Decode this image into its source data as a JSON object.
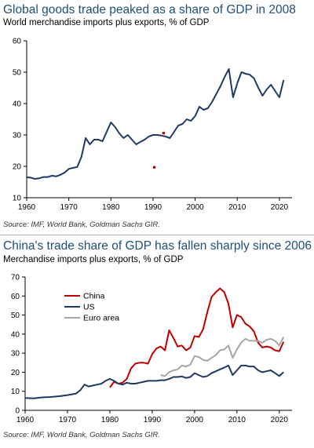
{
  "chart_data": [
    {
      "type": "line",
      "title": "Global goods trade peaked as a share of GDP in 2008",
      "subtitle": "World merchandise imports plus exports, % of GDP",
      "source": "Source: IMF, World Bank, Goldman Sachs GIR.",
      "xlim": [
        1960,
        2023
      ],
      "ylim": [
        10,
        60
      ],
      "xticks": [
        1960,
        1970,
        1980,
        1990,
        2000,
        2010,
        2020
      ],
      "yticks": [
        10,
        20,
        30,
        40,
        50,
        60
      ],
      "grid": false,
      "series": [
        {
          "color": "#1f3864",
          "x": [
            1960,
            1961,
            1962,
            1963,
            1964,
            1965,
            1966,
            1967,
            1968,
            1969,
            1970,
            1971,
            1972,
            1973,
            1974,
            1975,
            1976,
            1977,
            1978,
            1979,
            1980,
            1981,
            1982,
            1983,
            1984,
            1985,
            1986,
            1987,
            1988,
            1989,
            1990,
            1991,
            1992,
            1993,
            1994,
            1995,
            1996,
            1997,
            1998,
            1999,
            2000,
            2001,
            2002,
            2003,
            2004,
            2005,
            2006,
            2007,
            2008,
            2009,
            2010,
            2011,
            2012,
            2013,
            2014,
            2015,
            2016,
            2017,
            2018,
            2019,
            2020,
            2021
          ],
          "values": [
            16.5,
            16.4,
            16.0,
            16.2,
            16.6,
            16.6,
            17.0,
            16.8,
            17.3,
            18.0,
            19.2,
            19.5,
            19.8,
            23.0,
            29.0,
            27.0,
            28.5,
            28.5,
            28.0,
            31.0,
            34.0,
            32.5,
            30.5,
            29.0,
            30.0,
            28.5,
            27.0,
            27.8,
            28.5,
            29.5,
            30.0,
            30.0,
            29.8,
            29.5,
            29.0,
            31.0,
            33.0,
            33.5,
            35.0,
            34.5,
            36.0,
            39.0,
            38.0,
            38.5,
            40.5,
            43.0,
            45.5,
            48.5,
            51.0,
            42.0,
            46.5,
            50.0,
            49.5,
            49.2,
            48.0,
            45.0,
            42.5,
            44.5,
            46.0,
            44.0,
            42.0,
            47.5
          ]
        }
      ],
      "markers": [
        {
          "x": 1992.5,
          "y": 30.6,
          "color": "#c00000"
        },
        {
          "x": 1990.3,
          "y": 19.7,
          "color": "#c00000"
        }
      ]
    },
    {
      "type": "line",
      "title": "China's trade share of GDP has fallen sharply since 2006",
      "subtitle": "Merchandise imports plus exports, % of GDP",
      "source": "Source: IMF, World Bank, Goldman Sachs GIR.",
      "xlim": [
        1960,
        2023
      ],
      "ylim": [
        0,
        70
      ],
      "xticks": [
        1960,
        1970,
        1980,
        1990,
        2000,
        2010,
        2020
      ],
      "yticks": [
        0,
        10,
        20,
        30,
        40,
        50,
        60,
        70
      ],
      "grid": false,
      "legend": "top-left",
      "series": [
        {
          "name": "China",
          "color": "#c00000",
          "x": [
            1980,
            1981,
            1982,
            1983,
            1984,
            1985,
            1986,
            1987,
            1988,
            1989,
            1990,
            1991,
            1992,
            1993,
            1994,
            1995,
            1996,
            1997,
            1998,
            1999,
            2000,
            2001,
            2002,
            2003,
            2004,
            2005,
            2006,
            2007,
            2008,
            2009,
            2010,
            2011,
            2012,
            2013,
            2014,
            2015,
            2016,
            2017,
            2018,
            2019,
            2020,
            2021
          ],
          "values": [
            12.0,
            15.0,
            14.0,
            14.5,
            16.5,
            22.0,
            24.5,
            25.0,
            25.0,
            24.5,
            29.5,
            32.5,
            33.5,
            31.5,
            42.0,
            38.0,
            33.5,
            34.0,
            31.5,
            33.0,
            39.0,
            38.5,
            42.5,
            51.5,
            59.5,
            62.0,
            64.0,
            62.0,
            56.0,
            43.5,
            50.0,
            49.0,
            45.5,
            44.0,
            41.5,
            35.5,
            33.0,
            33.5,
            33.0,
            31.5,
            31.0,
            36.0
          ]
        },
        {
          "name": "US",
          "color": "#1f3864",
          "x": [
            1960,
            1962,
            1964,
            1966,
            1968,
            1970,
            1972,
            1973,
            1974,
            1975,
            1976,
            1977,
            1978,
            1979,
            1980,
            1981,
            1982,
            1983,
            1984,
            1985,
            1986,
            1987,
            1988,
            1989,
            1990,
            1991,
            1992,
            1993,
            1994,
            1995,
            1996,
            1997,
            1998,
            1999,
            2000,
            2001,
            2002,
            2003,
            2004,
            2005,
            2006,
            2007,
            2008,
            2009,
            2010,
            2011,
            2012,
            2013,
            2014,
            2015,
            2016,
            2017,
            2018,
            2019,
            2020,
            2021
          ],
          "values": [
            6.5,
            6.3,
            6.8,
            7.0,
            7.4,
            8.0,
            8.8,
            10.5,
            13.5,
            12.5,
            13.0,
            13.5,
            14.0,
            15.5,
            16.5,
            15.5,
            14.0,
            13.5,
            14.5,
            14.0,
            14.0,
            14.5,
            15.0,
            15.5,
            15.5,
            15.5,
            15.8,
            15.8,
            16.5,
            17.5,
            17.5,
            17.8,
            17.0,
            17.5,
            19.5,
            18.5,
            17.5,
            18.0,
            19.5,
            20.5,
            21.5,
            22.5,
            23.5,
            18.5,
            21.0,
            23.5,
            23.5,
            23.0,
            23.0,
            21.0,
            20.0,
            20.5,
            21.0,
            19.5,
            18.0,
            20.0
          ]
        },
        {
          "name": "Euro area",
          "color": "#a6a6a6",
          "x": [
            1992,
            1993,
            1994,
            1995,
            1996,
            1997,
            1998,
            1999,
            2000,
            2001,
            2002,
            2003,
            2004,
            2005,
            2006,
            2007,
            2008,
            2009,
            2010,
            2011,
            2012,
            2013,
            2014,
            2015,
            2016,
            2017,
            2018,
            2019,
            2020,
            2021
          ],
          "values": [
            18.5,
            18.0,
            20.0,
            21.0,
            21.5,
            23.5,
            23.0,
            24.0,
            28.5,
            28.0,
            26.5,
            26.0,
            27.5,
            29.0,
            31.5,
            32.0,
            34.0,
            27.5,
            32.0,
            35.5,
            37.5,
            36.5,
            36.5,
            36.5,
            35.5,
            37.0,
            37.5,
            36.5,
            34.0,
            38.5
          ]
        }
      ]
    }
  ]
}
